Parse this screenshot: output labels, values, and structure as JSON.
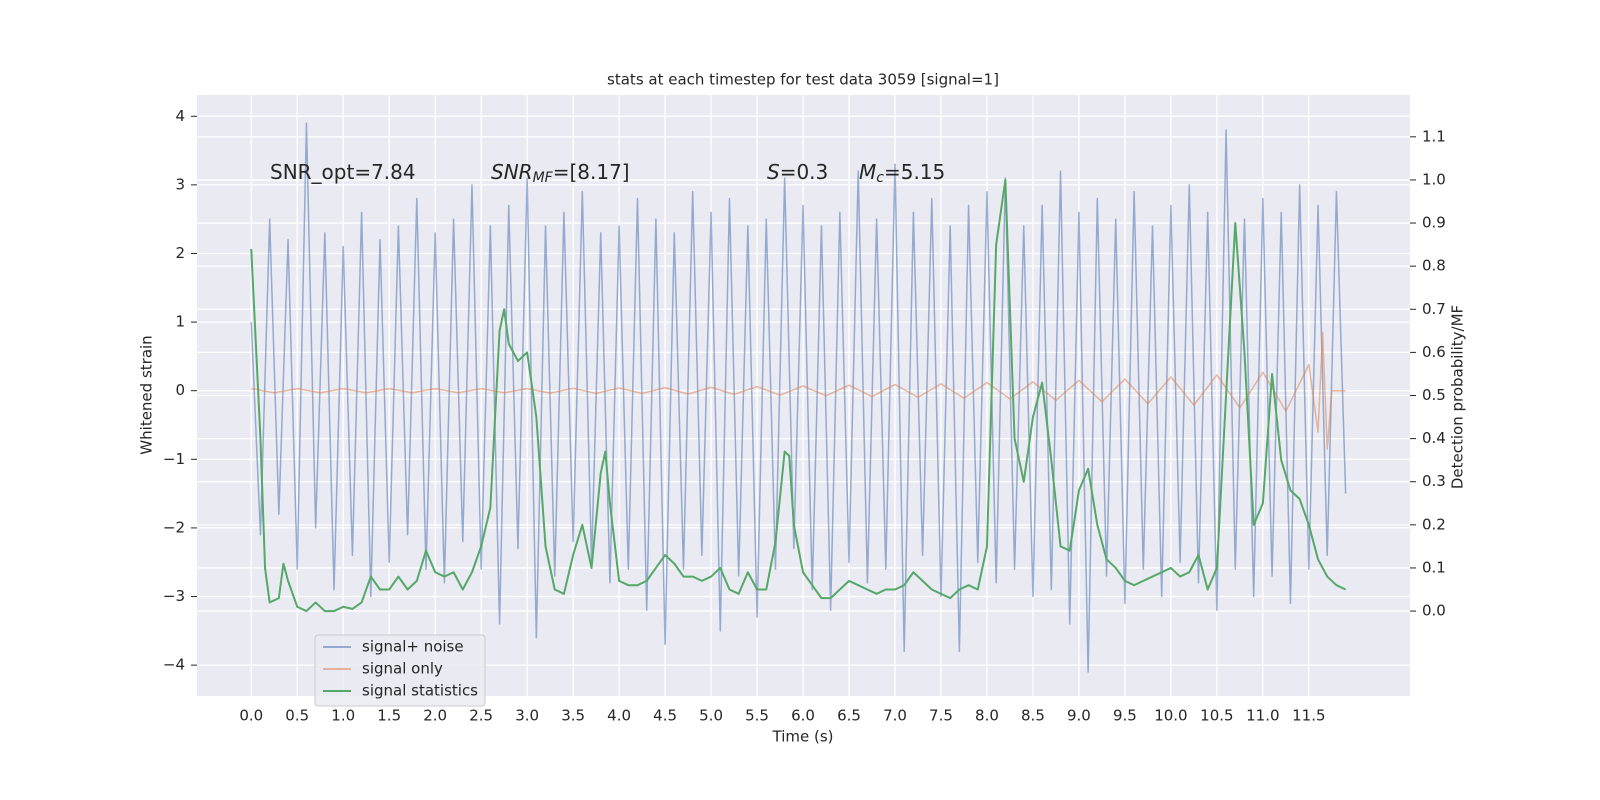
{
  "chart_data": {
    "type": "line",
    "title": "stats at each timestep for test data 3059 [signal=1]",
    "xlabel": "Time (s)",
    "ylabel": "Whitened strain",
    "y2label": "Detection probability/MF",
    "xlim": [
      -0.59,
      12.6
    ],
    "ylim": [
      -4.45,
      4.31
    ],
    "y2lim": [
      -0.197,
      1.197
    ],
    "xticks": [
      {
        "value": 0,
        "label": "0.0"
      },
      0.5,
      {
        "value": 1,
        "label": "1.0"
      },
      1.5,
      {
        "value": 2,
        "label": "2.0"
      },
      2.5,
      {
        "value": 3,
        "label": "3.0"
      },
      3.5,
      {
        "value": 4,
        "label": "4.0"
      },
      4.5,
      {
        "value": 5,
        "label": "5.0"
      },
      5.5,
      {
        "value": 6,
        "label": "6.0"
      },
      6.5,
      {
        "value": 7,
        "label": "7.0"
      },
      7.5,
      {
        "value": 8,
        "label": "8.0"
      },
      8.5,
      {
        "value": 9,
        "label": "9.0"
      },
      9.5,
      {
        "value": 10,
        "label": "10.0"
      },
      10.5,
      {
        "value": 11,
        "label": "11.0"
      },
      11.5
    ],
    "yticks": [
      {
        "value": -4,
        "label": "−4"
      },
      {
        "value": -3,
        "label": "−3"
      },
      {
        "value": -2,
        "label": "−2"
      },
      {
        "value": -1,
        "label": "−1"
      },
      0,
      1,
      2,
      3,
      4
    ],
    "y2ticks": [
      {
        "value": 0,
        "label": "0.0"
      },
      0.1,
      0.2,
      0.3,
      0.4,
      0.5,
      0.6,
      0.7,
      0.8,
      0.9,
      {
        "value": 1,
        "label": "1.0"
      },
      1.1
    ],
    "grid": true,
    "legend": "lower left",
    "annotations": [
      {
        "text": "SNR_opt=7.84"
      },
      {
        "math": "SNR",
        "sub": "MF",
        "text": "=[8.17]"
      },
      {
        "math": "S",
        "text": "=0.3"
      },
      {
        "math": "M",
        "sub": "c",
        "text": "=5.15"
      }
    ],
    "series": [
      {
        "name": "signal+ noise",
        "color": "#4c72b0",
        "x": [
          0,
          0.1,
          0.2,
          0.3,
          0.4,
          0.5,
          0.6,
          0.7,
          0.8,
          0.9,
          1.0,
          1.1,
          1.2,
          1.3,
          1.4,
          1.5,
          1.6,
          1.7,
          1.8,
          1.9,
          2.0,
          2.1,
          2.2,
          2.3,
          2.4,
          2.5,
          2.6,
          2.7,
          2.8,
          2.9,
          3.0,
          3.1,
          3.2,
          3.3,
          3.4,
          3.5,
          3.6,
          3.7,
          3.8,
          3.9,
          4.0,
          4.1,
          4.2,
          4.3,
          4.4,
          4.5,
          4.6,
          4.7,
          4.8,
          4.9,
          5.0,
          5.1,
          5.2,
          5.3,
          5.4,
          5.5,
          5.6,
          5.7,
          5.8,
          5.9,
          6.0,
          6.1,
          6.2,
          6.3,
          6.4,
          6.5,
          6.6,
          6.7,
          6.8,
          6.9,
          7.0,
          7.1,
          7.2,
          7.3,
          7.4,
          7.5,
          7.6,
          7.7,
          7.8,
          7.9,
          8.0,
          8.1,
          8.2,
          8.3,
          8.4,
          8.5,
          8.6,
          8.7,
          8.8,
          8.9,
          9.0,
          9.1,
          9.2,
          9.3,
          9.4,
          9.5,
          9.6,
          9.7,
          9.8,
          9.9,
          10.0,
          10.1,
          10.2,
          10.3,
          10.4,
          10.5,
          10.6,
          10.7,
          10.8,
          10.9,
          11.0,
          11.1,
          11.2,
          11.3,
          11.4,
          11.5,
          11.6,
          11.7,
          11.8,
          11.9
        ],
        "values": [
          1.0,
          -2.1,
          2.5,
          -1.8,
          2.2,
          -2.6,
          3.9,
          -2.0,
          2.3,
          -2.9,
          2.1,
          -2.4,
          2.6,
          -3.0,
          2.2,
          -2.5,
          2.4,
          -2.1,
          2.8,
          -2.6,
          2.3,
          -2.8,
          2.5,
          -2.2,
          3.0,
          -2.6,
          2.4,
          -3.4,
          2.7,
          -2.3,
          3.1,
          -3.6,
          2.4,
          -2.7,
          2.6,
          -2.2,
          2.9,
          -2.5,
          2.3,
          -2.8,
          2.4,
          -2.6,
          2.8,
          -3.2,
          2.5,
          -3.7,
          2.3,
          -2.6,
          2.9,
          -2.4,
          2.6,
          -3.5,
          2.8,
          -2.7,
          2.4,
          -3.3,
          2.5,
          -2.6,
          3.1,
          -2.3,
          2.7,
          -2.9,
          2.4,
          -3.2,
          2.6,
          -2.5,
          3.2,
          -2.8,
          2.5,
          -2.6,
          3.3,
          -3.8,
          2.6,
          -2.4,
          2.8,
          -3.0,
          2.4,
          -3.8,
          2.7,
          -2.5,
          2.9,
          -2.8,
          3.1,
          -2.6,
          2.4,
          -3.0,
          2.7,
          -2.9,
          3.2,
          -3.4,
          2.6,
          -4.1,
          2.8,
          -2.7,
          2.5,
          -3.1,
          2.9,
          -2.6,
          2.4,
          -3.0,
          2.7,
          -2.5,
          3.0,
          -2.8,
          2.6,
          -3.2,
          3.8,
          -2.6,
          2.5,
          -3.0,
          2.8,
          -2.7,
          2.6,
          -3.1,
          3.0,
          -2.6,
          2.7,
          -2.4,
          2.9,
          -1.5
        ]
      },
      {
        "name": "signal only",
        "color": "#dd8452",
        "x": [
          0,
          0.25,
          0.5,
          0.75,
          1,
          1.25,
          1.5,
          1.75,
          2,
          2.25,
          2.5,
          2.75,
          3,
          3.25,
          3.5,
          3.75,
          4,
          4.25,
          4.5,
          4.75,
          5,
          5.25,
          5.5,
          5.75,
          6,
          6.25,
          6.5,
          6.75,
          7,
          7.25,
          7.5,
          7.75,
          8,
          8.25,
          8.5,
          8.75,
          9,
          9.25,
          9.5,
          9.75,
          10,
          10.25,
          10.5,
          10.75,
          11,
          11.25,
          11.5,
          11.6,
          11.65,
          11.7,
          11.75,
          11.9
        ],
        "values": [
          0.03,
          -0.03,
          0.03,
          -0.03,
          0.03,
          -0.03,
          0.03,
          -0.03,
          0.03,
          -0.03,
          0.03,
          -0.03,
          0.03,
          -0.035,
          0.035,
          -0.04,
          0.04,
          -0.04,
          0.045,
          -0.05,
          0.05,
          -0.055,
          0.06,
          -0.065,
          0.07,
          -0.075,
          0.08,
          -0.085,
          0.09,
          -0.095,
          0.1,
          -0.11,
          0.12,
          -0.12,
          0.13,
          -0.14,
          0.15,
          -0.16,
          0.17,
          -0.19,
          0.2,
          -0.21,
          0.23,
          -0.25,
          0.27,
          -0.3,
          0.38,
          -0.6,
          0.85,
          -0.85,
          0,
          0
        ]
      },
      {
        "name": "signal statistics",
        "color": "#55a868",
        "axis": "y2",
        "x": [
          0,
          0.1,
          0.15,
          0.2,
          0.3,
          0.35,
          0.4,
          0.5,
          0.6,
          0.7,
          0.8,
          0.9,
          1.0,
          1.1,
          1.2,
          1.3,
          1.4,
          1.5,
          1.6,
          1.7,
          1.8,
          1.9,
          2.0,
          2.1,
          2.2,
          2.3,
          2.4,
          2.5,
          2.6,
          2.7,
          2.75,
          2.8,
          2.9,
          3.0,
          3.1,
          3.2,
          3.3,
          3.4,
          3.5,
          3.6,
          3.7,
          3.8,
          3.85,
          3.9,
          4.0,
          4.1,
          4.2,
          4.3,
          4.4,
          4.5,
          4.6,
          4.7,
          4.8,
          4.9,
          5.0,
          5.1,
          5.2,
          5.3,
          5.4,
          5.5,
          5.6,
          5.7,
          5.8,
          5.85,
          5.9,
          6.0,
          6.1,
          6.2,
          6.3,
          6.4,
          6.5,
          6.6,
          6.7,
          6.8,
          6.9,
          7.0,
          7.1,
          7.2,
          7.3,
          7.4,
          7.5,
          7.6,
          7.7,
          7.8,
          7.9,
          8.0,
          8.1,
          8.2,
          8.3,
          8.4,
          8.5,
          8.6,
          8.7,
          8.8,
          8.9,
          9.0,
          9.1,
          9.2,
          9.3,
          9.4,
          9.5,
          9.6,
          9.7,
          9.8,
          9.9,
          10.0,
          10.1,
          10.2,
          10.3,
          10.4,
          10.5,
          10.6,
          10.7,
          10.8,
          10.9,
          11.0,
          11.1,
          11.2,
          11.3,
          11.4,
          11.5,
          11.6,
          11.7,
          11.8,
          11.9
        ],
        "values": [
          0.84,
          0.4,
          0.1,
          0.02,
          0.03,
          0.11,
          0.07,
          0.01,
          0.0,
          0.02,
          0.0,
          0.0,
          0.01,
          0.005,
          0.02,
          0.08,
          0.05,
          0.05,
          0.08,
          0.05,
          0.07,
          0.14,
          0.09,
          0.08,
          0.09,
          0.05,
          0.09,
          0.15,
          0.24,
          0.65,
          0.7,
          0.62,
          0.58,
          0.6,
          0.45,
          0.15,
          0.05,
          0.04,
          0.13,
          0.2,
          0.1,
          0.32,
          0.37,
          0.25,
          0.07,
          0.06,
          0.06,
          0.07,
          0.1,
          0.13,
          0.11,
          0.08,
          0.08,
          0.07,
          0.08,
          0.1,
          0.05,
          0.04,
          0.09,
          0.05,
          0.05,
          0.16,
          0.37,
          0.36,
          0.2,
          0.09,
          0.06,
          0.03,
          0.03,
          0.05,
          0.07,
          0.06,
          0.05,
          0.04,
          0.05,
          0.05,
          0.06,
          0.09,
          0.07,
          0.05,
          0.04,
          0.03,
          0.05,
          0.06,
          0.05,
          0.15,
          0.85,
          1.0,
          0.4,
          0.3,
          0.45,
          0.53,
          0.35,
          0.15,
          0.14,
          0.28,
          0.33,
          0.2,
          0.12,
          0.1,
          0.07,
          0.06,
          0.07,
          0.08,
          0.09,
          0.1,
          0.08,
          0.09,
          0.13,
          0.05,
          0.1,
          0.5,
          0.9,
          0.6,
          0.2,
          0.25,
          0.55,
          0.35,
          0.28,
          0.26,
          0.2,
          0.12,
          0.08,
          0.06,
          0.05
        ]
      }
    ]
  }
}
